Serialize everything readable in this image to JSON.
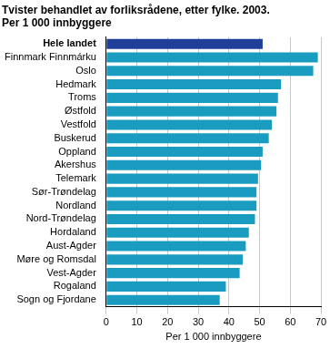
{
  "chart_data": {
    "type": "bar",
    "orientation": "horizontal",
    "title": "Tvister behandlet av forliksrådene, etter fylke. 2003.",
    "subtitle": "Per 1 000 innbyggere",
    "x_label": "Per 1 000 innbyggere",
    "categories": [
      "Hele landet",
      "Finnmark Finnmárku",
      "Oslo",
      "Hedmark",
      "Troms",
      "Østfold",
      "Vestfold",
      "Buskerud",
      "Oppland",
      "Akershus",
      "Telemark",
      "Sør-Trøndelag",
      "Nordland",
      "Nord-Trøndelag",
      "Hordaland",
      "Aust-Agder",
      "Møre og Romsdal",
      "Vest-Agder",
      "Rogaland",
      "Sogn og Fjordane"
    ],
    "values": [
      51,
      69,
      67.5,
      57,
      56,
      55.5,
      54,
      53,
      51,
      50.5,
      49.5,
      49,
      49,
      48.5,
      46.5,
      45.5,
      44.5,
      43.5,
      39,
      37
    ],
    "colors": [
      "#1f3f99",
      "#1a9cc0",
      "#1a9cc0",
      "#1a9cc0",
      "#1a9cc0",
      "#1a9cc0",
      "#1a9cc0",
      "#1a9cc0",
      "#1a9cc0",
      "#1a9cc0",
      "#1a9cc0",
      "#1a9cc0",
      "#1a9cc0",
      "#1a9cc0",
      "#1a9cc0",
      "#1a9cc0",
      "#1a9cc0",
      "#1a9cc0",
      "#1a9cc0",
      "#1a9cc0"
    ],
    "xlim": [
      0,
      70
    ],
    "xticks": [
      0,
      10,
      20,
      30,
      40,
      50,
      60,
      70
    ],
    "grid": true
  }
}
